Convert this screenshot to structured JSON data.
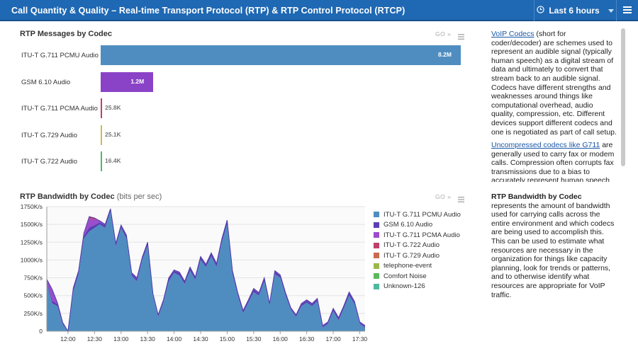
{
  "header": {
    "title": "Call Quantity & Quality – Real-time Transport Protocol (RTP) & RTP Control Protocol (RTCP)",
    "time_range": "Last 6 hours"
  },
  "messages_panel": {
    "title": "RTP Messages by Codec",
    "go_label": "GO »"
  },
  "bandwidth_panel": {
    "title": "RTP Bandwidth by Codec",
    "subtitle": "(bits per sec)",
    "go_label": "GO »"
  },
  "sidebar": {
    "p1_link": "VoIP Codecs",
    "p1_text": " (short for coder/decoder) are schemes used to represent an audible signal (typically human speech) as a digital stream of data and ultimately to convert that stream back to an audible signal. Codecs have different strengths and weaknesses around things like computational overhead, audio quality, compression, etc. Different devices support different codecs and one is negotiated as part of call setup.",
    "p2_link": "Uncompressed codecs like G711",
    "p2_text": " are generally used to carry fax or modem calls. Compression often corrupts fax transmissions due to a bias to accurately represent human speech",
    "p3_bold": "RTP Bandwidth by Codec",
    "p3_text": " represents the amount of bandwidth used for carrying calls across the entire environment and which codecs are being used to accomplish this. This can be used to estimate what resources are necessary in the organization for things like capacity planning, look for trends or patterns, and to otherwise identify what resources are appropriate for VoIP traffic."
  },
  "colors": {
    "header_bg": "#1f68b3",
    "pcmu": "#4f8dc0",
    "gsm": "#8a43c6",
    "pcma": "#c0406a",
    "g729": "#c9c04a",
    "g722": "#4fb86a"
  },
  "chart_data": [
    {
      "type": "bar",
      "orientation": "horizontal",
      "title": "RTP Messages by Codec",
      "categories": [
        "ITU-T G.711 PCMU Audio",
        "GSM 6.10 Audio",
        "ITU-T G.711 PCMA Audio",
        "ITU-T G.729 Audio",
        "ITU-T G.722 Audio"
      ],
      "values": [
        8200000,
        1200000,
        25800,
        25100,
        16400
      ],
      "value_labels": [
        "8.2M",
        "1.2M",
        "25.8K",
        "25.1K",
        "16.4K"
      ],
      "colors": [
        "#4f8dc0",
        "#8a43c6",
        "#c0406a",
        "#c9c04a",
        "#4fb86a"
      ]
    },
    {
      "type": "area",
      "title": "RTP Bandwidth by Codec",
      "subtitle": "(bits per sec)",
      "ylim": [
        0,
        1750000
      ],
      "y_ticks": [
        0,
        250000,
        500000,
        750000,
        1000000,
        1250000,
        1500000,
        1750000
      ],
      "y_tick_labels": [
        "0",
        "250K/s",
        "500K/s",
        "750K/s",
        "1000K/s",
        "1250K/s",
        "1500K/s",
        "1750K/s"
      ],
      "x_tick_labels": [
        "12:00",
        "12:30",
        "13:00",
        "13:30",
        "14:00",
        "14:30",
        "15:00",
        "15:30",
        "16:00",
        "16:30",
        "17:00",
        "17:30"
      ],
      "x": [
        "11:36",
        "11:42",
        "11:48",
        "11:54",
        "12:00",
        "12:06",
        "12:12",
        "12:18",
        "12:24",
        "12:30",
        "12:36",
        "12:42",
        "12:48",
        "12:54",
        "13:00",
        "13:06",
        "13:12",
        "13:18",
        "13:24",
        "13:30",
        "13:36",
        "13:42",
        "13:48",
        "13:54",
        "14:00",
        "14:06",
        "14:12",
        "14:18",
        "14:24",
        "14:30",
        "14:36",
        "14:42",
        "14:48",
        "14:54",
        "15:00",
        "15:06",
        "15:12",
        "15:18",
        "15:24",
        "15:30",
        "15:36",
        "15:42",
        "15:48",
        "15:54",
        "16:00",
        "16:06",
        "16:12",
        "16:18",
        "16:24",
        "16:30",
        "16:36",
        "16:42",
        "16:48",
        "16:54",
        "17:00",
        "17:06",
        "17:12",
        "17:18",
        "17:24",
        "17:30",
        "17:36"
      ],
      "legend": [
        "ITU-T G.711 PCMU Audio",
        "GSM 6.10 Audio",
        "ITU-T G.711 PCMA Audio",
        "ITU-T G.722 Audio",
        "ITU-T G.729 Audio",
        "telephone-event",
        "Comfort Noise",
        "Unknown-126"
      ],
      "legend_colors": [
        "#4f8dc0",
        "#5a3fb5",
        "#9b4dcc",
        "#c0406a",
        "#c96a4f",
        "#9ab84a",
        "#5cb85c",
        "#4fb8a0"
      ],
      "series": [
        {
          "name": "ITU-T G.711 PCMU Audio",
          "values": [
            680000,
            390000,
            350000,
            90000,
            0,
            560000,
            800000,
            1300000,
            1400000,
            1450000,
            1500000,
            1450000,
            1680000,
            1180000,
            1450000,
            1300000,
            780000,
            700000,
            1000000,
            1200000,
            500000,
            200000,
            400000,
            700000,
            820000,
            780000,
            660000,
            850000,
            720000,
            1000000,
            900000,
            1050000,
            900000,
            1250000,
            1500000,
            800000,
            500000,
            250000,
            400000,
            550000,
            500000,
            700000,
            350000,
            800000,
            750000,
            500000,
            300000,
            200000,
            350000,
            400000,
            350000,
            420000,
            50000,
            100000,
            280000,
            150000,
            320000,
            500000,
            380000,
            100000,
            50000
          ]
        },
        {
          "name": "GSM 6.10 Audio",
          "values": [
            30000,
            40000,
            30000,
            20000,
            0,
            40000,
            40000,
            40000,
            60000,
            40000,
            30000,
            40000,
            30000,
            40000,
            30000,
            40000,
            30000,
            40000,
            30000,
            40000,
            20000,
            20000,
            30000,
            40000,
            30000,
            40000,
            30000,
            40000,
            30000,
            40000,
            30000,
            40000,
            40000,
            40000,
            50000,
            40000,
            30000,
            30000,
            30000,
            40000,
            30000,
            40000,
            30000,
            40000,
            30000,
            30000,
            20000,
            20000,
            30000,
            30000,
            30000,
            30000,
            20000,
            20000,
            30000,
            30000,
            30000,
            40000,
            30000,
            20000,
            20000
          ]
        },
        {
          "name": "ITU-T G.711 PCMA Audio",
          "values": [
            20000,
            150000,
            20000,
            10000,
            0,
            10000,
            10000,
            30000,
            120000,
            80000,
            20000,
            10000,
            10000,
            10000,
            10000,
            10000,
            10000,
            10000,
            10000,
            10000,
            10000,
            10000,
            10000,
            10000,
            10000,
            10000,
            10000,
            10000,
            10000,
            10000,
            10000,
            10000,
            10000,
            10000,
            10000,
            10000,
            10000,
            10000,
            10000,
            10000,
            10000,
            10000,
            10000,
            10000,
            10000,
            10000,
            10000,
            10000,
            10000,
            10000,
            10000,
            10000,
            10000,
            10000,
            10000,
            10000,
            10000,
            10000,
            10000,
            10000,
            10000
          ]
        },
        {
          "name": "ITU-T G.722 Audio",
          "values": [
            0,
            10000,
            0,
            0,
            0,
            0,
            0,
            10000,
            30000,
            20000,
            0,
            0,
            0,
            0,
            0,
            0,
            0,
            0,
            0,
            0,
            0,
            0,
            0,
            0,
            0,
            0,
            0,
            0,
            0,
            0,
            0,
            0,
            0,
            0,
            0,
            0,
            0,
            0,
            0,
            0,
            0,
            0,
            0,
            0,
            0,
            0,
            0,
            0,
            0,
            0,
            0,
            0,
            0,
            0,
            0,
            0,
            0,
            0,
            0,
            0,
            0
          ]
        }
      ]
    }
  ]
}
